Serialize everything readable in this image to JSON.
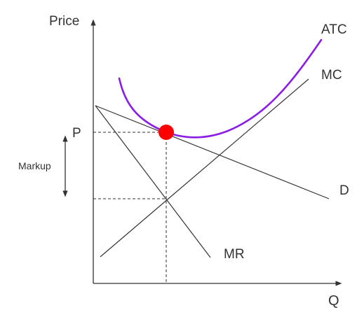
{
  "labels": {
    "y_axis": "Price",
    "x_axis": "Q",
    "atc": "ATC",
    "mc": "MC",
    "demand": "D",
    "mr": "MR",
    "price": "P",
    "markup": "Markup"
  },
  "colors": {
    "axis": "#333333",
    "lines": "#333333",
    "atc_curve": "#8a1ee6",
    "equilibrium_point": "#ff0000",
    "background": "#ffffff"
  }
}
